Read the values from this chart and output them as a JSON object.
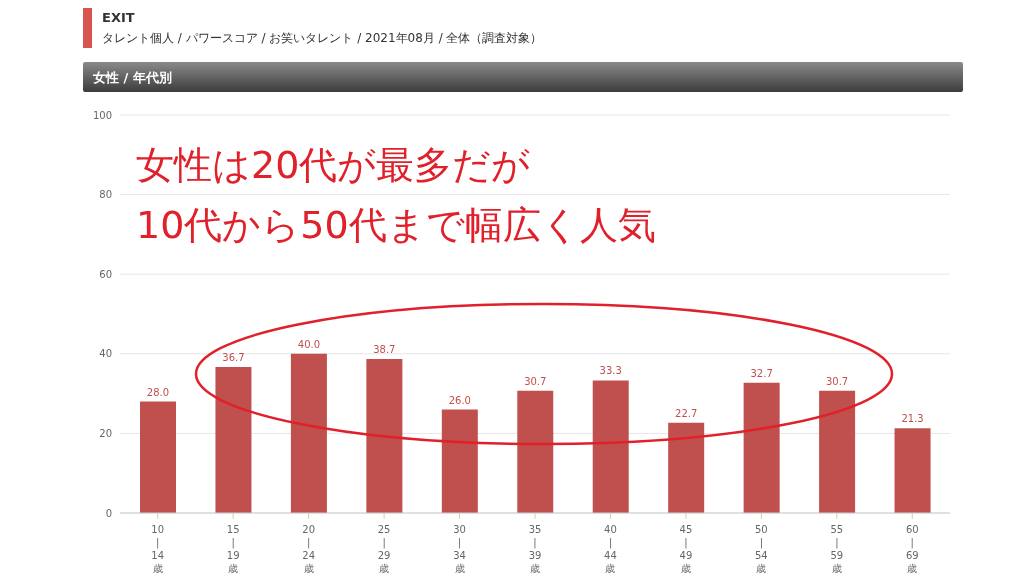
{
  "chart_data": {
    "type": "bar",
    "title": "EXIT",
    "subtitle": "タレント個人 / パワースコア / お笑いタレント / 2021年08月 / 全体（調査対象）",
    "annotations": [
      "女性 / 年代別",
      "女性は20代が最多だが",
      "10代から50代まで幅広く人気"
    ],
    "categories": [
      "10\n|\n14\n歳",
      "15\n|\n19\n歳",
      "20\n|\n24\n歳",
      "25\n|\n29\n歳",
      "30\n|\n34\n歳",
      "35\n|\n39\n歳",
      "40\n|\n44\n歳",
      "45\n|\n49\n歳",
      "50\n|\n54\n歳",
      "55\n|\n59\n歳",
      "60\n|\n69\n歳"
    ],
    "values": [
      28.0,
      36.7,
      40.0,
      38.7,
      26.0,
      30.7,
      33.3,
      22.7,
      32.7,
      30.7,
      21.3
    ],
    "value_labels": [
      "28.0",
      "36.7",
      "40.0",
      "38.7",
      "26.0",
      "30.7",
      "33.3",
      "22.7",
      "32.7",
      "30.7",
      "21.3"
    ],
    "color": "#c0504d",
    "ylim": [
      0,
      100
    ],
    "yticks": [
      0,
      20,
      40,
      60,
      80,
      100
    ],
    "grid": "y"
  }
}
